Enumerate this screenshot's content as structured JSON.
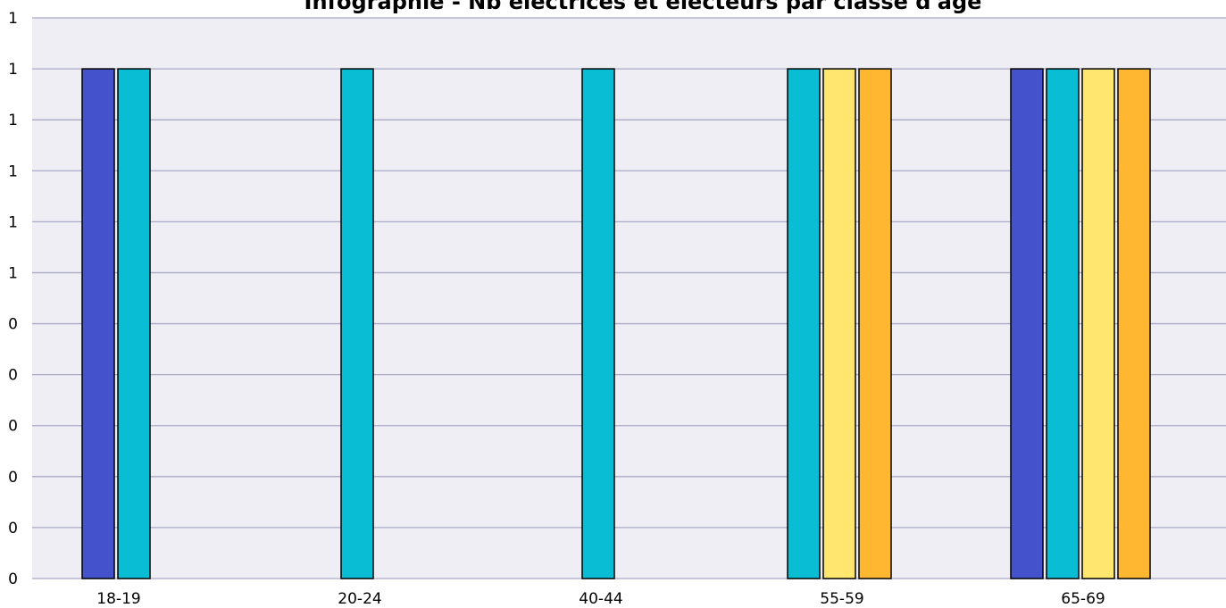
{
  "chart_data": {
    "type": "bar",
    "title": "Infographie - Nb électrices et électeurs par classe d'âge",
    "xlabel": "",
    "ylabel": "",
    "categories": [
      "18-19",
      "20-24",
      "40-44",
      "55-59",
      "65-69"
    ],
    "y_tick_labels": [
      "0",
      "0",
      "0",
      "0",
      "0",
      "0",
      "1",
      "1",
      "1",
      "1",
      "1",
      "1"
    ],
    "ylim": [
      0,
      1.1
    ],
    "grid": true,
    "series": [
      {
        "color": "#4453cc",
        "values": [
          1,
          0,
          0,
          0,
          1
        ]
      },
      {
        "color": "#08bdd4",
        "values": [
          1,
          1,
          1,
          1,
          1
        ]
      },
      {
        "color": "#ffe66e",
        "values": [
          0,
          0,
          0,
          1,
          1
        ]
      },
      {
        "color": "#ffb732",
        "values": [
          0,
          0,
          0,
          1,
          1
        ]
      }
    ]
  }
}
